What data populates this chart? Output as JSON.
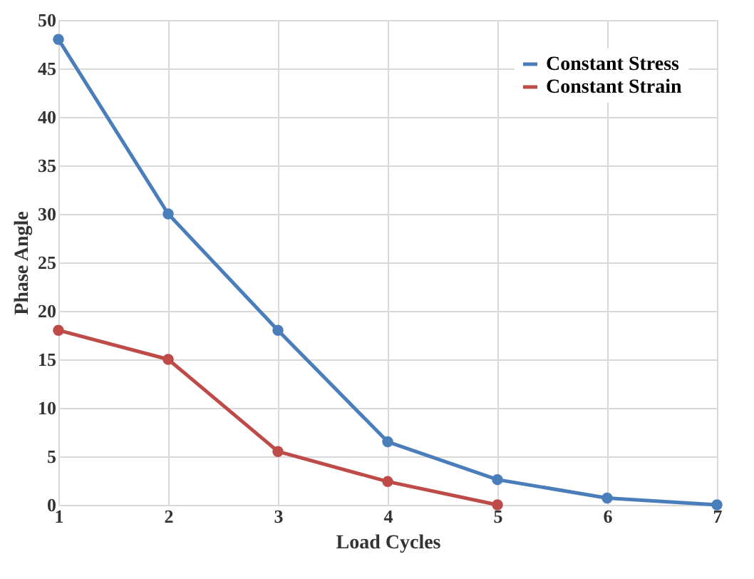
{
  "chart_data": {
    "type": "line",
    "xlabel": "Load  Cycles",
    "ylabel": "Phase Angle",
    "x": [
      1,
      2,
      3,
      4,
      5,
      6,
      7
    ],
    "series": [
      {
        "name": "Constant Stress",
        "color": "#4a7ebb",
        "values": [
          48,
          30,
          18,
          6.5,
          2.6,
          0.7,
          0
        ]
      },
      {
        "name": "Constant Strain",
        "color": "#be4b48",
        "values": [
          18,
          15,
          5.5,
          2.4,
          0,
          null,
          null
        ]
      }
    ],
    "xlim": [
      1,
      7
    ],
    "xticks": [
      1,
      2,
      3,
      4,
      5,
      6,
      7
    ],
    "ylim": [
      0,
      50
    ],
    "yticks": [
      0,
      5,
      10,
      15,
      20,
      25,
      30,
      35,
      40,
      45,
      50
    ],
    "grid": true,
    "legend": "top right",
    "marker": "circle",
    "line_style": "solid"
  }
}
